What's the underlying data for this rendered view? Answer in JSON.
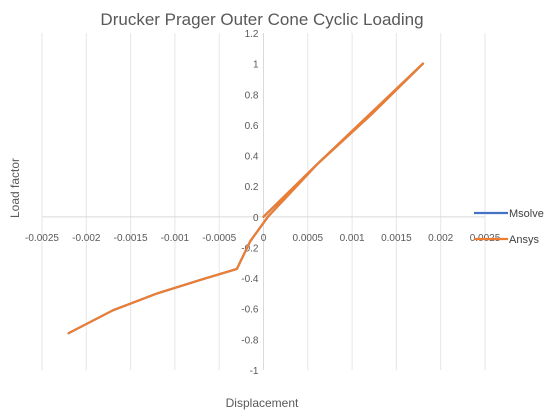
{
  "chart_data": {
    "type": "line",
    "title": "Drucker Prager Outer Cone Cyclic Loading",
    "xlabel": "Displacement",
    "ylabel": "Load factor",
    "xlim": [
      -0.0025,
      0.0025
    ],
    "ylim": [
      -1,
      1.2
    ],
    "x_ticks": [
      "-0.0025",
      "-0.002",
      "-0.0015",
      "-0.001",
      "-0.0005",
      "0",
      "0.0005",
      "0.001",
      "0.0015",
      "0.002",
      "0.0025"
    ],
    "x_tick_values": [
      -0.0025,
      -0.002,
      -0.0015,
      -0.001,
      -0.0005,
      0,
      0.0005,
      0.001,
      0.0015,
      0.002,
      0.0025
    ],
    "y_ticks": [
      "1.2",
      "1",
      "0.8",
      "0.6",
      "0.4",
      "0.2",
      "0",
      "-0.2",
      "-0.4",
      "-0.6",
      "-0.8",
      "-1"
    ],
    "y_tick_values": [
      1.2,
      1,
      0.8,
      0.6,
      0.4,
      0.2,
      0,
      -0.2,
      -0.4,
      -0.6,
      -0.8,
      -1
    ],
    "grid": "vertical",
    "legend_position": "right",
    "series": [
      {
        "name": "Msolve",
        "color": "#4472C4",
        "x": [
          0,
          0.0006,
          0.0012,
          0.0018,
          0.00122,
          0.0006,
          5e-05,
          -0.00015,
          -0.0003,
          -0.0007,
          -0.0012,
          -0.0017,
          -0.0022
        ],
        "y": [
          0,
          0.34,
          0.67,
          1.0,
          0.67,
          0.34,
          0,
          -0.16,
          -0.34,
          -0.41,
          -0.5,
          -0.61,
          -0.76
        ]
      },
      {
        "name": "Ansys",
        "color": "#ED7D31",
        "x": [
          0,
          0.0006,
          0.0012,
          0.0018,
          0.00122,
          0.0006,
          5e-05,
          -0.00015,
          -0.0003,
          -0.0007,
          -0.0012,
          -0.0017,
          -0.0022
        ],
        "y": [
          0,
          0.34,
          0.67,
          1.0,
          0.67,
          0.34,
          0,
          -0.16,
          -0.34,
          -0.41,
          -0.5,
          -0.61,
          -0.76
        ]
      }
    ]
  }
}
